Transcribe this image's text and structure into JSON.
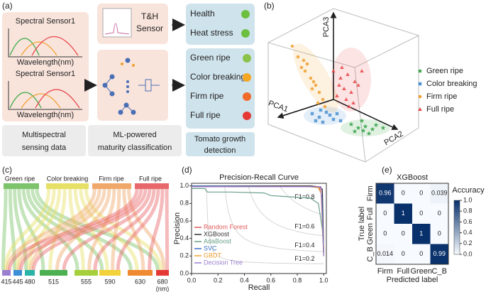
{
  "panel_a": {
    "label": "(a)",
    "sensor_titles": [
      "Spectral Sensor1",
      "Spectral Sensor1"
    ],
    "axis_labels": [
      "Wavelength(nm)",
      "Wavelength(nm)"
    ],
    "th_sensor": [
      "T&H",
      "Sensor"
    ],
    "health_outputs": [
      "Health",
      "Heat stress"
    ],
    "maturity_outputs": [
      "Green ripe",
      "Color breaking",
      "Firm ripe",
      "Full ripe"
    ],
    "bottom_labels": [
      [
        "Multispectral",
        "sensing data"
      ],
      [
        "ML-powered",
        "maturity classification"
      ],
      [
        "Tomato growth",
        "detection"
      ]
    ]
  },
  "panel_c": {
    "label": "(c)",
    "classes": [
      "Green ripe",
      "Color breaking",
      "Firm ripe",
      "Full ripe"
    ],
    "wavelengths": [
      415,
      445,
      480,
      515,
      555,
      590,
      630,
      680
    ],
    "unit": "(nm)"
  },
  "chart_data": [
    {
      "type": "scatter",
      "label": "(b)",
      "x_label": "PCA1",
      "y_label": "PCA2",
      "z_label": "PCA3",
      "xlim": [
        0,
        220
      ],
      "ylim": [
        0,
        210
      ],
      "series": [
        {
          "name": "Green ripe",
          "color": "#2e9e3f",
          "marker": "star",
          "x": [
            115,
            125,
            135,
            145,
            130,
            140,
            150,
            120,
            160,
            132
          ],
          "values": [
            45,
            40,
            42,
            38,
            50,
            32,
            44,
            35,
            40,
            36
          ]
        },
        {
          "name": "Color breaking",
          "color": "#4a90d0",
          "marker": "square",
          "x": [
            60,
            70,
            80,
            90,
            75,
            65,
            85,
            95,
            100,
            72
          ],
          "values": [
            60,
            55,
            62,
            52,
            48,
            50,
            58,
            60,
            50,
            65
          ]
        },
        {
          "name": "Firm ripe",
          "color": "#f0a030",
          "marker": "circle",
          "x": [
            32,
            40,
            45,
            50,
            58,
            65,
            70,
            75,
            62,
            53,
            68,
            78,
            60,
            48
          ],
          "values": [
            155,
            140,
            125,
            120,
            110,
            100,
            90,
            80,
            105,
            130,
            75,
            70,
            95,
            135
          ]
        },
        {
          "name": "Full ripe",
          "color": "#e8474a",
          "marker": "triangle",
          "x": [
            90,
            100,
            110,
            120,
            105,
            115,
            125,
            95,
            108,
            118,
            130,
            102,
            112,
            98
          ],
          "values": [
            120,
            110,
            115,
            105,
            95,
            90,
            100,
            85,
            80,
            75,
            120,
            125,
            70,
            100
          ]
        }
      ]
    },
    {
      "type": "line",
      "label": "(d)",
      "title": "Precision-Recall Curve",
      "x_label": "Recall",
      "y_label": "Precision",
      "xlim": [
        0,
        1.02
      ],
      "ylim": [
        0,
        1.03
      ],
      "xticks": [
        {
          "value": 0,
          "label": "0.0"
        },
        0.2,
        0.4,
        0.6,
        0.8,
        {
          "value": 1,
          "label": "1.0"
        }
      ],
      "yticks": [
        {
          "value": 0,
          "label": "0.0"
        },
        0.2,
        0.4,
        0.6,
        0.8,
        {
          "value": 1,
          "label": "1.0"
        }
      ],
      "iso_f1": [
        {
          "value": 0.8,
          "label": "F1=0.8"
        },
        {
          "value": 0.6,
          "label": "F1=0.6"
        },
        {
          "value": 0.4,
          "label": "F1=0.4"
        },
        {
          "value": 0.2,
          "label": "F1=0.2"
        }
      ],
      "series": [
        {
          "name": "Random Forest",
          "color": "#e05a5a",
          "x": [
            0,
            0.9,
            0.96,
            0.98,
            0.995,
            1.0
          ],
          "values": [
            1,
            1,
            0.99,
            0.95,
            0.6,
            0.2
          ]
        },
        {
          "name": "XGBoost",
          "color": "#333333",
          "x": [
            0,
            0.9,
            0.97,
            0.99,
            1.0
          ],
          "values": [
            1,
            1,
            0.99,
            0.96,
            0.2
          ]
        },
        {
          "name": "AdaBoost",
          "color": "#6aa08a",
          "x": [
            0,
            0.1,
            0.12,
            0.3,
            0.55,
            0.6,
            0.7,
            0.9,
            0.96,
            0.99,
            1.0
          ],
          "values": [
            0.97,
            0.97,
            0.93,
            0.93,
            0.92,
            0.89,
            0.88,
            0.86,
            0.8,
            0.5,
            0.2
          ]
        },
        {
          "name": "SVC",
          "color": "#3b6fc4",
          "x": [
            0,
            0.9,
            0.96,
            0.985,
            1.0
          ],
          "values": [
            1,
            0.99,
            0.98,
            0.9,
            0.2
          ]
        },
        {
          "name": "GBDT",
          "color": "#f0a030",
          "x": [
            0,
            0.9,
            0.96,
            0.98,
            1.0
          ],
          "values": [
            0.99,
            0.99,
            0.98,
            0.92,
            0.2
          ]
        },
        {
          "name": "Decision Tree",
          "color": "#9b7fd0",
          "x": [
            0,
            0.98,
            1.0
          ],
          "values": [
            0.99,
            0.99,
            0.2
          ]
        }
      ]
    },
    {
      "type": "heatmap",
      "label": "(e)",
      "title": "XGBoost",
      "categories": [
        "Firm",
        "Full",
        "Green",
        "C_B"
      ],
      "values": [
        [
          0.96,
          0,
          0,
          0.039
        ],
        [
          0,
          1,
          0,
          0
        ],
        [
          0,
          0,
          1,
          0
        ],
        [
          0.014,
          0,
          0,
          0.99
        ]
      ],
      "x_label": "Predicted label",
      "y_label": "True label",
      "colorbar_label": "Accuracy",
      "clim": [
        0,
        1
      ],
      "cticks": [
        {
          "value": 0,
          "label": "0.0"
        },
        0.2,
        0.4,
        0.6,
        0.8,
        {
          "value": 1,
          "label": "1.0"
        }
      ]
    }
  ]
}
